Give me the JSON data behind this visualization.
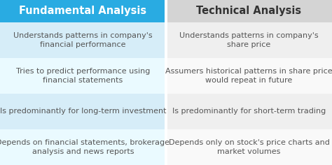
{
  "col1_header": "Fundamental Analysis",
  "col2_header": "Technical Analysis",
  "col1_header_bg": "#29ABE2",
  "col2_header_bg": "#D4D4D4",
  "col1_header_color": "#FFFFFF",
  "col2_header_color": "#333333",
  "col1_rows": [
    "Understands patterns in company's\nfinancial performance",
    "Tries to predict performance using\nfinancial statements",
    "Is predominantly for long-term investment",
    "Depends on financial statements, brokerage\nanalysis and news reports"
  ],
  "col2_rows": [
    "Understands patterns in company's\nshare price",
    "Assumers historical patterns in share price\nwould repeat in future",
    "Is predominantly for short-term trading",
    "Depends only on stock's price charts and\nmarket volumes"
  ],
  "left_row_colors": [
    "#D6EDF8",
    "#EAFAFF",
    "#D6EDF8",
    "#EAFAFF"
  ],
  "right_row_colors": [
    "#EFEFEF",
    "#F9F9F9",
    "#EFEFEF",
    "#F9F9F9"
  ],
  "header_fontsize": 10.5,
  "cell_fontsize": 8.0,
  "text_color": "#555555",
  "divider_color": "#FFFFFF"
}
